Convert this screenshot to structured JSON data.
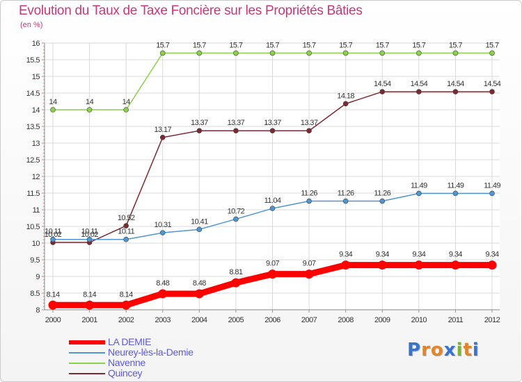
{
  "title": "Evolution du Taux de Taxe Foncière sur les Propriétés Bâties",
  "unit": "(en %)",
  "logo": {
    "text": "Proxiti",
    "letter_colors": [
      "#3a74c9",
      "#e0862a",
      "#e0862a",
      "#3a74c9",
      "#7ab631",
      "#e0862a",
      "#3a74c9"
    ]
  },
  "chart_data": {
    "type": "line",
    "title": "Evolution du Taux de Taxe Foncière sur les Propriétés Bâties",
    "ylabel": "(en %)",
    "xlabel": "",
    "categories": [
      "2000",
      "2001",
      "2002",
      "2003",
      "2004",
      "2005",
      "2006",
      "2007",
      "2008",
      "2009",
      "2010",
      "2011",
      "2012"
    ],
    "ylim": [
      8,
      16
    ],
    "yticks": [
      "8",
      "8.5",
      "9",
      "9.5",
      "10",
      "10.5",
      "11",
      "11.5",
      "12",
      "12.5",
      "13",
      "13.5",
      "14",
      "14.5",
      "15",
      "15.5",
      "16"
    ],
    "grid": true,
    "legend_position": "bottom-left",
    "series": [
      {
        "name": "LA DEMIE",
        "color": "#ff0000",
        "style": "thick",
        "values": [
          8.14,
          8.14,
          8.14,
          8.48,
          8.48,
          8.81,
          9.07,
          9.07,
          9.34,
          9.34,
          9.34,
          9.34,
          9.34
        ],
        "labels": [
          "8.14",
          "8.14",
          "8.14",
          "8.48",
          "8.48",
          "8.81",
          "9.07",
          "9.07",
          "9.34",
          "9.34",
          "9.34",
          "9.34",
          "9.34"
        ]
      },
      {
        "name": "Neurey-lès-la-Demie",
        "color": "#4f95d0",
        "style": "thin",
        "values": [
          10.11,
          10.11,
          10.11,
          10.31,
          10.41,
          10.72,
          11.04,
          11.26,
          11.26,
          11.26,
          11.49,
          11.49,
          11.49
        ],
        "labels": [
          "10.11",
          "10.11",
          "10.11",
          "10.31",
          "10.41",
          "10.72",
          "11.04",
          "11.26",
          "11.26",
          "11.26",
          "11.49",
          "11.49",
          "11.49"
        ]
      },
      {
        "name": "Navenne",
        "color": "#8bd14a",
        "style": "thin",
        "values": [
          14,
          14,
          14,
          15.7,
          15.7,
          15.7,
          15.7,
          15.7,
          15.7,
          15.7,
          15.7,
          15.7,
          15.7
        ],
        "labels": [
          "14",
          "14",
          "14",
          "15.7",
          "15.7",
          "15.7",
          "15.7",
          "15.7",
          "15.7",
          "15.7",
          "15.7",
          "15.7",
          "15.7"
        ]
      },
      {
        "name": "Quincey",
        "color": "#7b2a32",
        "style": "thin",
        "values": [
          10.02,
          10.02,
          10.52,
          13.17,
          13.37,
          13.37,
          13.37,
          13.37,
          14.18,
          14.54,
          14.54,
          14.54,
          14.54
        ],
        "labels": [
          "10.02",
          "10.02",
          "10.52",
          "13.17",
          "13.37",
          "13.37",
          "13.37",
          "13.37",
          "14.18",
          "14.54",
          "14.54",
          "14.54",
          "14.54"
        ]
      }
    ]
  }
}
